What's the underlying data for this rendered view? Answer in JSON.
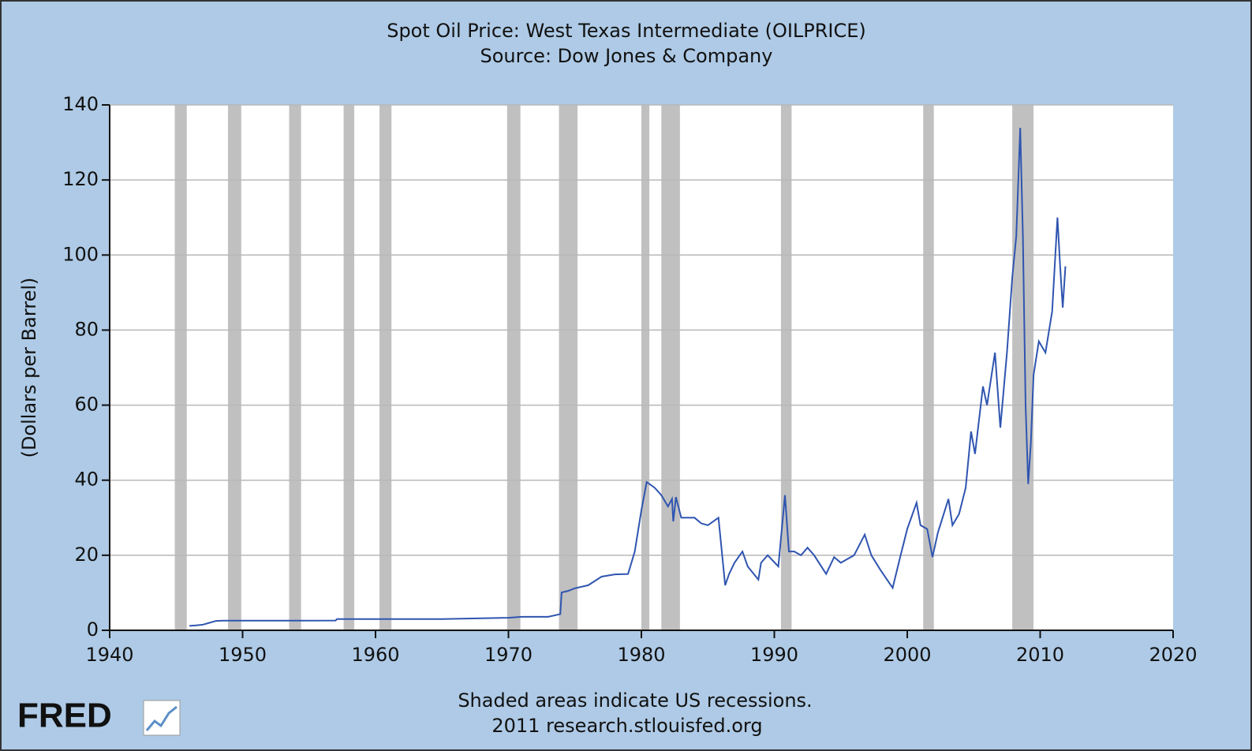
{
  "chart_data": {
    "type": "line",
    "title": "Spot Oil Price: West Texas Intermediate (OILPRICE)",
    "subtitle": "Source: Dow Jones & Company",
    "y_label": "(Dollars per Barrel)",
    "note": "Shaded areas indicate US recessions.",
    "source": "2011 research.stlouisfed.org",
    "logo": "FRED",
    "xlim": [
      1940,
      2020
    ],
    "xticks": [
      1940,
      1950,
      1960,
      1970,
      1980,
      1990,
      2000,
      2010,
      2020
    ],
    "ylim": [
      0,
      140
    ],
    "yticks": [
      0,
      20,
      40,
      60,
      80,
      100,
      120,
      140
    ],
    "grid": true,
    "recession_color": "#c0c0c0",
    "recessions": [
      [
        1944.9,
        1945.8
      ],
      [
        1948.9,
        1949.9
      ],
      [
        1953.5,
        1954.4
      ],
      [
        1957.6,
        1958.4
      ],
      [
        1960.3,
        1961.2
      ],
      [
        1969.9,
        1970.9
      ],
      [
        1973.8,
        1975.2
      ],
      [
        1980.0,
        1980.6
      ],
      [
        1981.5,
        1982.9
      ],
      [
        1990.5,
        1991.3
      ],
      [
        2001.2,
        2002.0
      ],
      [
        2007.9,
        2009.5
      ]
    ],
    "series": [
      {
        "name": "OILPRICE",
        "color": "#2f55b0",
        "x": [
          1946.0,
          1946.5,
          1947.0,
          1947.5,
          1948.0,
          1948.5,
          1953.0,
          1957.0,
          1957.1,
          1965.0,
          1970.0,
          1971.0,
          1973.0,
          1973.9,
          1974.0,
          1974.5,
          1975.0,
          1976.0,
          1977.0,
          1978.0,
          1979.0,
          1979.5,
          1980.0,
          1980.4,
          1981.0,
          1981.5,
          1982.0,
          1982.3,
          1982.4,
          1982.6,
          1983.0,
          1984.0,
          1984.5,
          1985.0,
          1985.8,
          1986.3,
          1986.6,
          1987.0,
          1987.6,
          1988.0,
          1988.8,
          1989.0,
          1989.5,
          1990.3,
          1990.8,
          1991.1,
          1991.5,
          1992.0,
          1992.5,
          1993.0,
          1993.9,
          1994.5,
          1995.0,
          1996.0,
          1996.8,
          1997.3,
          1998.0,
          1998.9,
          1999.5,
          2000.0,
          2000.7,
          2001.0,
          2001.5,
          2001.9,
          2002.3,
          2003.1,
          2003.4,
          2003.9,
          2004.4,
          2004.8,
          2005.1,
          2005.7,
          2006.0,
          2006.6,
          2007.0,
          2007.5,
          2007.9,
          2008.2,
          2008.5,
          2008.7,
          2008.9,
          2009.1,
          2009.3,
          2009.5,
          2009.9,
          2010.4,
          2010.9,
          2011.3,
          2011.5,
          2011.7,
          2011.9
        ],
        "values": [
          1.17,
          1.3,
          1.5,
          2.0,
          2.5,
          2.57,
          2.57,
          2.6,
          3.0,
          3.0,
          3.35,
          3.6,
          3.6,
          4.3,
          10.1,
          10.5,
          11.2,
          12.0,
          14.3,
          14.9,
          15.0,
          21.0,
          32.0,
          39.5,
          38.0,
          36.0,
          33.0,
          35.0,
          29.0,
          35.5,
          30.0,
          30.0,
          28.5,
          28.0,
          30.0,
          12.0,
          15.0,
          18.0,
          21.0,
          17.0,
          13.5,
          18.0,
          20.0,
          17.0,
          36.0,
          21.0,
          21.0,
          20.0,
          22.0,
          20.0,
          15.0,
          19.5,
          18.0,
          20.0,
          25.5,
          20.0,
          16.0,
          11.3,
          20.0,
          27.0,
          34.0,
          28.0,
          27.0,
          19.5,
          26.0,
          35.0,
          28.0,
          31.0,
          38.0,
          53.0,
          47.0,
          65.0,
          60.0,
          74.0,
          54.0,
          74.0,
          94.0,
          105.0,
          133.9,
          105.0,
          60.0,
          39.0,
          50.0,
          68.0,
          77.0,
          74.0,
          85.0,
          110.0,
          97.0,
          86.0,
          97.0
        ]
      }
    ]
  }
}
